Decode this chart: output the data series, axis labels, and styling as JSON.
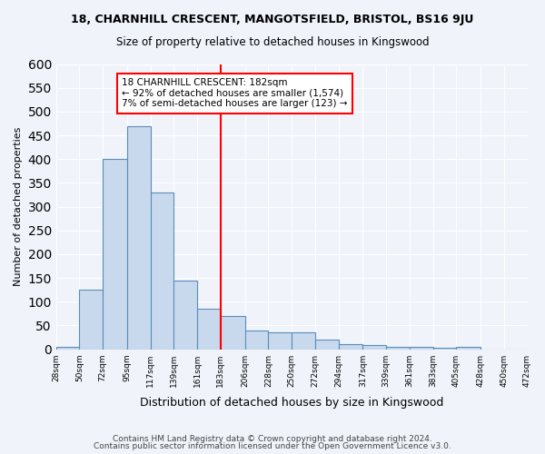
{
  "title_line1": "18, CHARNHILL CRESCENT, MANGOTSFIELD, BRISTOL, BS16 9JU",
  "title_line2": "Size of property relative to detached houses in Kingswood",
  "xlabel": "Distribution of detached houses by size in Kingswood",
  "ylabel": "Number of detached properties",
  "bar_color": "#c8d9ed",
  "bar_edge_color": "#5b8db8",
  "bins": [
    28,
    50,
    72,
    95,
    117,
    139,
    161,
    183,
    206,
    228,
    250,
    272,
    294,
    317,
    339,
    361,
    383,
    405,
    428,
    450,
    472
  ],
  "counts": [
    5,
    125,
    400,
    470,
    330,
    145,
    85,
    70,
    40,
    35,
    35,
    20,
    10,
    8,
    5,
    5,
    3,
    5,
    0,
    0
  ],
  "red_line_x": 183,
  "annotation_text": "18 CHARNHILL CRESCENT: 182sqm\n← 92% of detached houses are smaller (1,574)\n7% of semi-detached houses are larger (123) →",
  "annotation_box_color": "white",
  "annotation_box_edge": "red",
  "ylim": [
    0,
    600
  ],
  "yticks": [
    0,
    50,
    100,
    150,
    200,
    250,
    300,
    350,
    400,
    450,
    500,
    550,
    600
  ],
  "footer_line1": "Contains HM Land Registry data © Crown copyright and database right 2024.",
  "footer_line2": "Contains public sector information licensed under the Open Government Licence v3.0.",
  "background_color": "#f0f4fa",
  "grid_color": "white"
}
